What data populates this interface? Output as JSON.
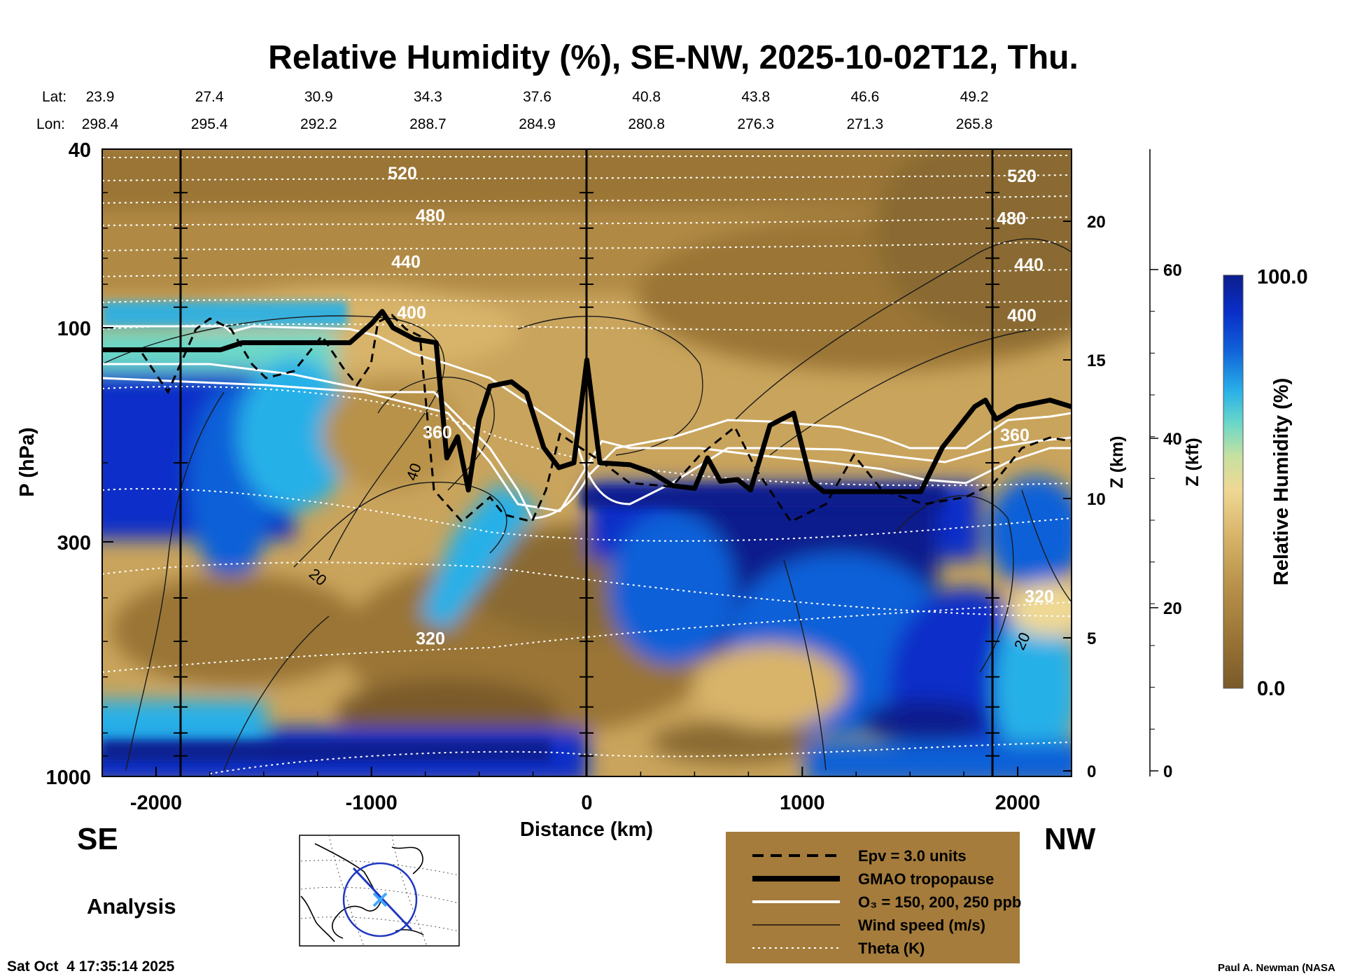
{
  "chart_data": {
    "type": "heatmap",
    "title": "Relative Humidity (%), SE-NW, 2025-10-02T12, Thu.",
    "xlabel": "Distance (km)",
    "ylabel": "P (hPa)",
    "ylabel_right_km": "Z (km)",
    "ylabel_right_kft": "Z (kft)",
    "xlim": [
      -2250,
      2250
    ],
    "ylim": [
      1000,
      40
    ],
    "x_ticks": [
      "-2000",
      "-1000",
      "0",
      "1000",
      "2000"
    ],
    "x_tick_values": [
      -2000,
      -1000,
      0,
      1000,
      2000
    ],
    "y_ticks": [
      "40",
      "100",
      "300",
      "1000"
    ],
    "y_tick_values": [
      40,
      100,
      300,
      1000
    ],
    "z_km_ticks": [
      "0",
      "5",
      "10",
      "15",
      "20"
    ],
    "z_kft_ticks": [
      "0",
      "20",
      "40",
      "60"
    ],
    "lat_label": "Lat:",
    "lon_label": "Lon:",
    "lat_values": [
      "23.9",
      "27.4",
      "30.9",
      "34.3",
      "37.6",
      "40.8",
      "43.8",
      "46.6",
      "49.2"
    ],
    "lon_values": [
      "298.4",
      "295.4",
      "292.2",
      "288.7",
      "284.9",
      "280.8",
      "276.3",
      "271.3",
      "265.8"
    ],
    "direction_left": "SE",
    "direction_right": "NW",
    "colorbar": {
      "label": "Relative Humidity (%)",
      "max_label": "100.0",
      "min_label": "0.0",
      "colors": [
        "#7a5a2a",
        "#9a7436",
        "#b8924a",
        "#d8b46a",
        "#efd894",
        "#c8e0a0",
        "#6cd8c8",
        "#28b0e8",
        "#1060d8",
        "#0a2ec8",
        "#0c1e8c"
      ]
    },
    "theta_contours": [
      {
        "label": "520",
        "p": 45
      },
      {
        "label": "480",
        "p": 56
      },
      {
        "label": "440",
        "p": 71
      },
      {
        "label": "400",
        "p": 92
      },
      {
        "label": "360",
        "p": 170
      },
      {
        "label": "320",
        "p": 490
      }
    ],
    "wind_labels": [
      "40",
      "20",
      "20"
    ],
    "tropopause": [
      [
        -2250,
        112
      ],
      [
        -2000,
        112
      ],
      [
        -1700,
        112
      ],
      [
        -1600,
        108
      ],
      [
        -1100,
        108
      ],
      [
        -1000,
        98
      ],
      [
        -950,
        92
      ],
      [
        -900,
        100
      ],
      [
        -800,
        106
      ],
      [
        -700,
        108
      ],
      [
        -650,
        195
      ],
      [
        -600,
        175
      ],
      [
        -550,
        230
      ],
      [
        -500,
        160
      ],
      [
        -450,
        135
      ],
      [
        -350,
        132
      ],
      [
        -280,
        140
      ],
      [
        -200,
        185
      ],
      [
        -130,
        205
      ],
      [
        -60,
        200
      ],
      [
        0,
        118
      ],
      [
        60,
        200
      ],
      [
        200,
        202
      ],
      [
        300,
        210
      ],
      [
        400,
        225
      ],
      [
        500,
        228
      ],
      [
        560,
        195
      ],
      [
        620,
        220
      ],
      [
        700,
        218
      ],
      [
        760,
        230
      ],
      [
        850,
        165
      ],
      [
        960,
        155
      ],
      [
        1040,
        220
      ],
      [
        1100,
        232
      ],
      [
        1300,
        232
      ],
      [
        1550,
        232
      ],
      [
        1650,
        185
      ],
      [
        1800,
        150
      ],
      [
        1850,
        145
      ],
      [
        1900,
        160
      ],
      [
        2000,
        150
      ],
      [
        2150,
        145
      ],
      [
        2250,
        150
      ]
    ],
    "legend": [
      {
        "style": "dashed",
        "label": "Epv = 3.0 units"
      },
      {
        "style": "thick",
        "label": "GMAO tropopause"
      },
      {
        "style": "white",
        "label": "O₃ = 150, 200, 250 ppb"
      },
      {
        "style": "thin",
        "label": "Wind speed (m/s)"
      },
      {
        "style": "dotted",
        "label": "Theta (K)"
      }
    ],
    "legend_colors": {
      "background": "#a57c3c"
    },
    "footer_left": "Analysis",
    "timestamp": "Sat Oct  4 17:35:14 2025",
    "credit": "Paul A. Newman (NASA"
  }
}
